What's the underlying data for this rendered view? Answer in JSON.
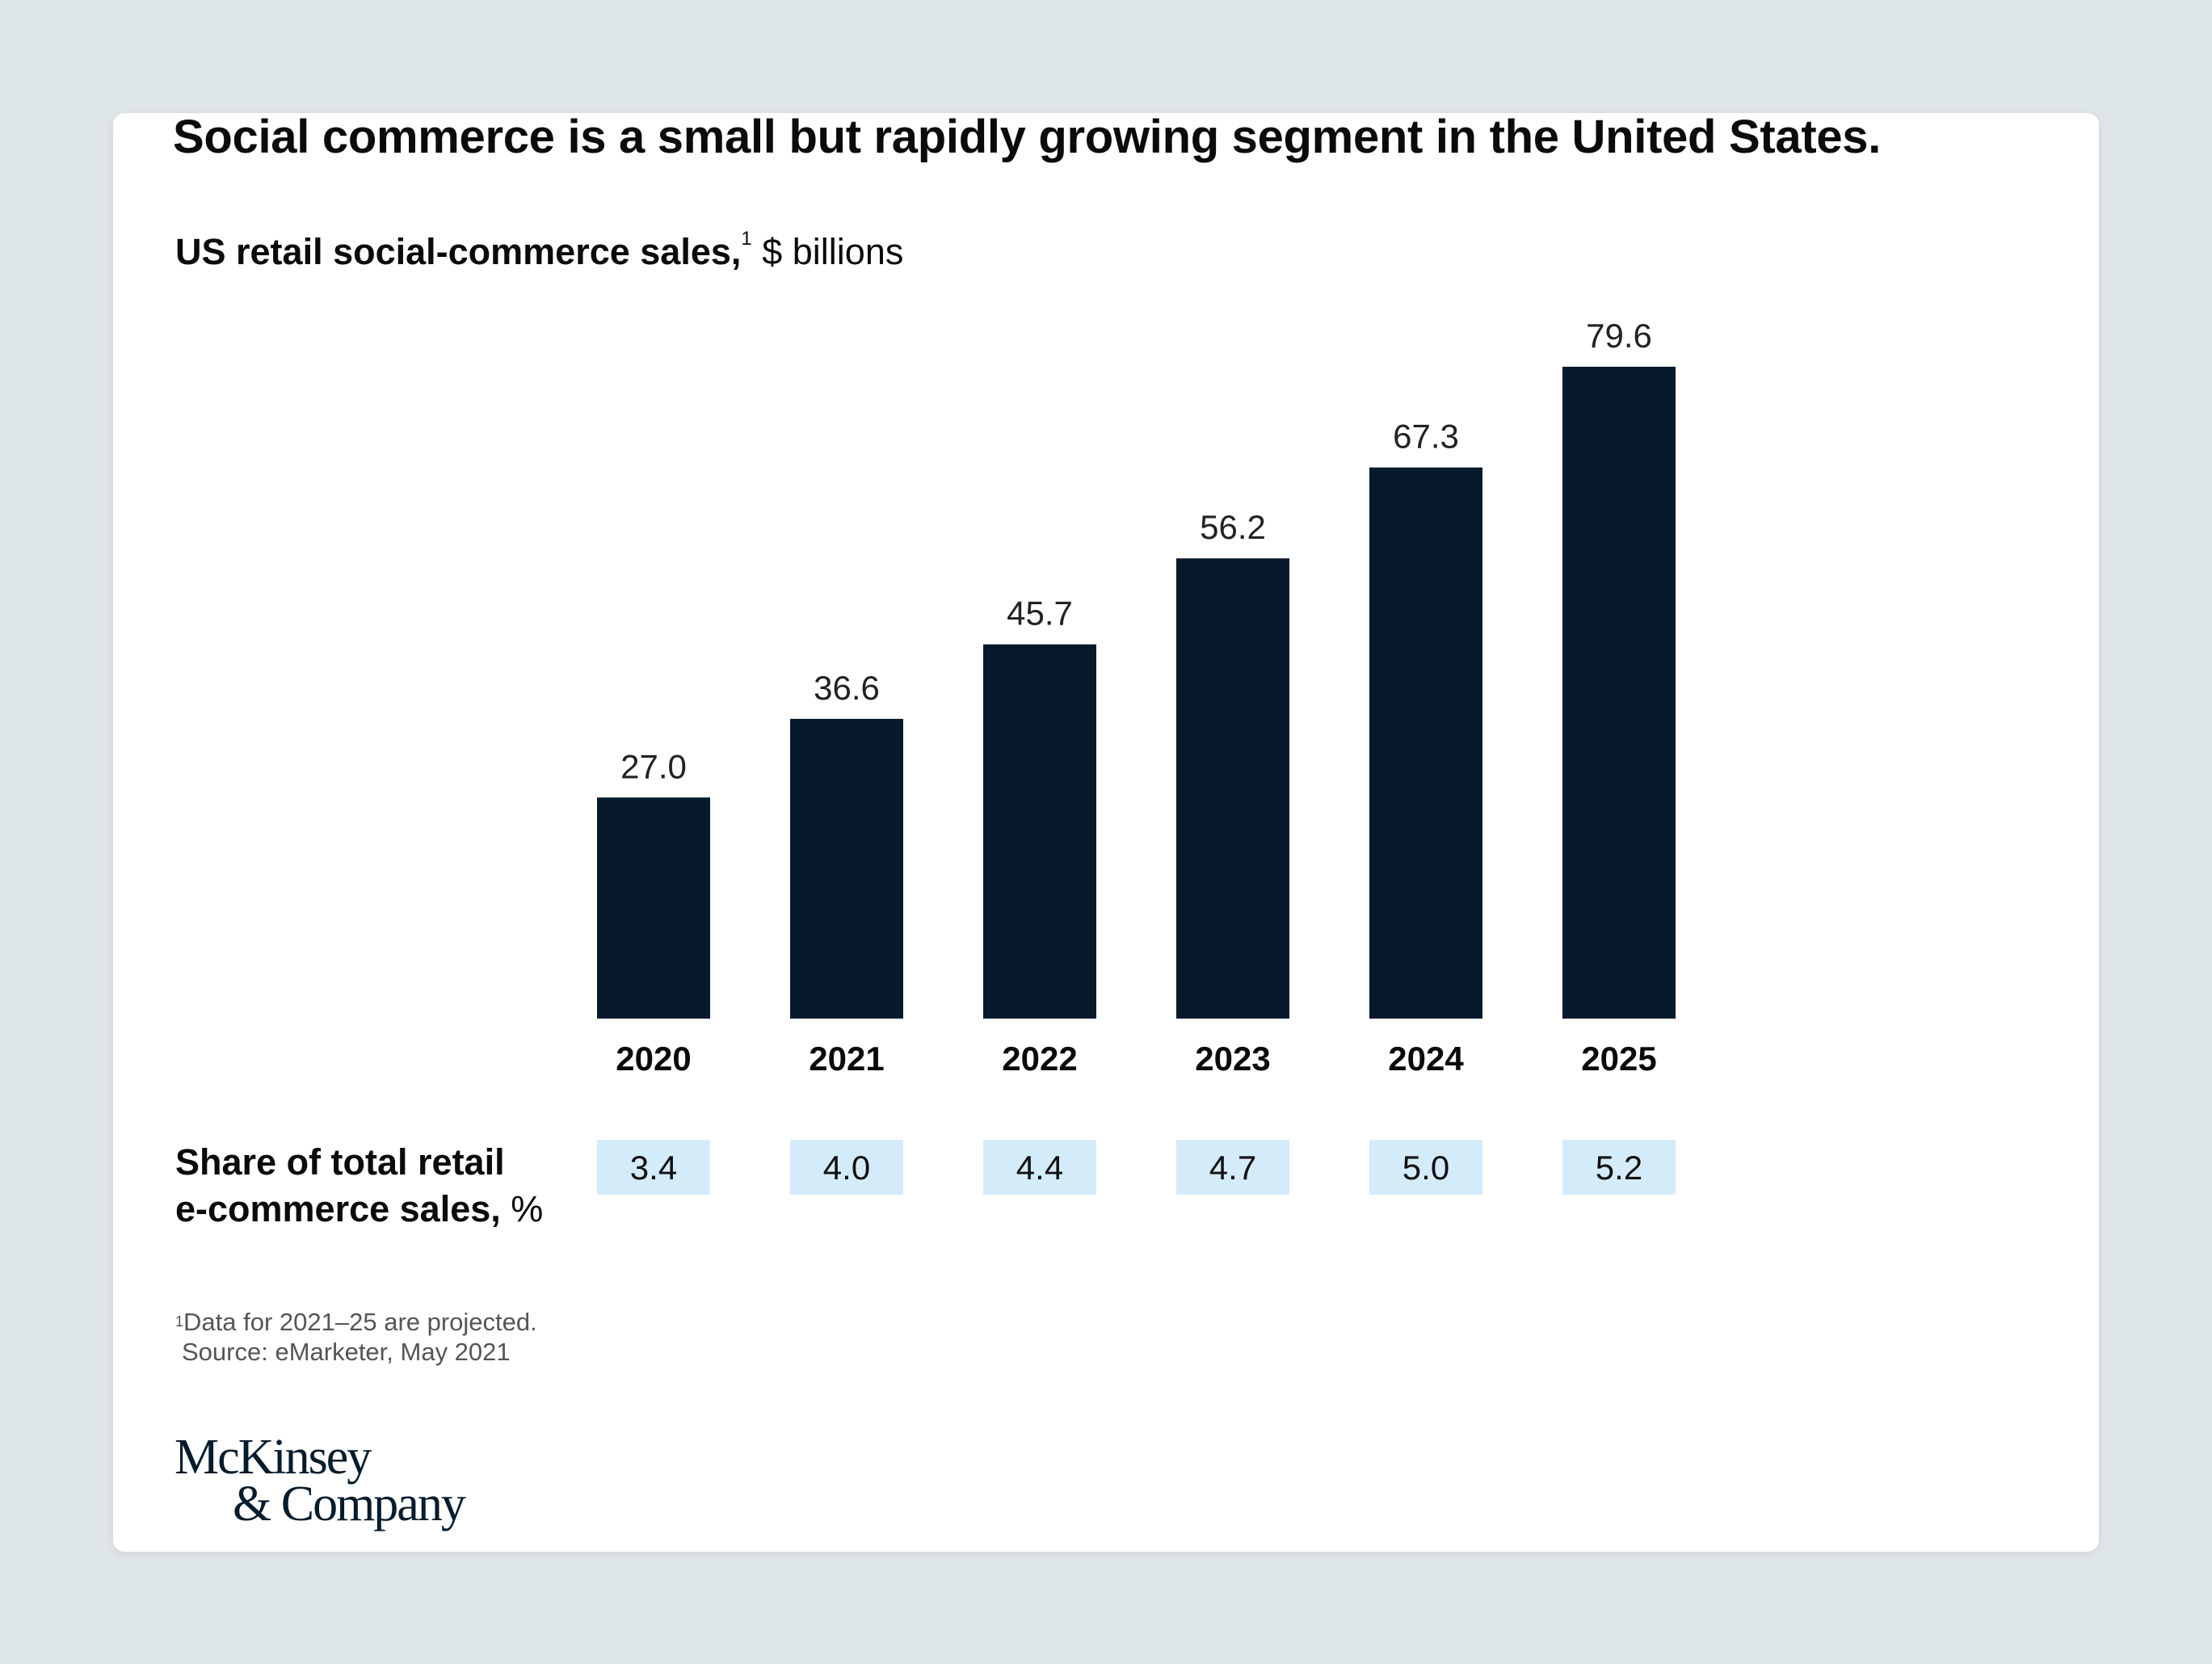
{
  "chart_data": {
    "type": "bar",
    "title": "Social commerce is a small but rapidly growing segment in the United States.",
    "subtitle_bold": "US retail social-commerce sales,",
    "subtitle_footnote_mark": "1",
    "subtitle_unit": " $ billions",
    "categories": [
      "2020",
      "2021",
      "2022",
      "2023",
      "2024",
      "2025"
    ],
    "values": [
      27.0,
      36.6,
      45.7,
      56.2,
      67.3,
      79.6
    ],
    "value_labels": [
      "27.0",
      "36.6",
      "45.7",
      "56.2",
      "67.3",
      "79.6"
    ],
    "ylim": [
      0,
      80
    ],
    "grid": false,
    "bar_color": "#071a2b",
    "share": {
      "label_bold_1": "Share of total retail",
      "label_bold_2": "e-commerce sales,",
      "label_unit": " %",
      "values": [
        "3.4",
        "4.0",
        "4.4",
        "4.7",
        "5.0",
        "5.2"
      ],
      "box_color": "#d4ebf9"
    }
  },
  "footnote": {
    "mark": "1",
    "text": "Data for 2021–25 are projected.",
    "source": "Source: eMarketer, May 2021"
  },
  "logo": {
    "line1": "McKinsey",
    "line2": "& Company"
  }
}
